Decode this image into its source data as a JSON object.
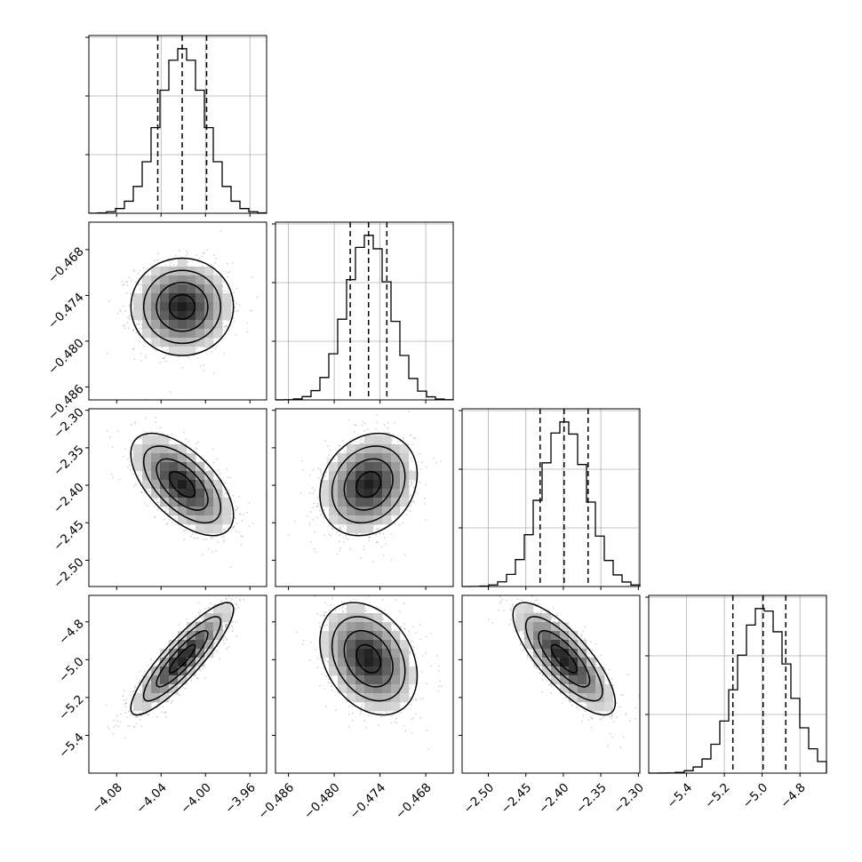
{
  "chart_data": {
    "type": "corner",
    "n_params": 4,
    "colors": {
      "line": "#000000",
      "grid": "#b0b0b0",
      "points": "#7f7f7f",
      "density_low": "#f2f2f2",
      "density_high": "#000000"
    },
    "grid": true,
    "params": [
      {
        "index": 0,
        "range": [
          -4.105,
          -3.945
        ],
        "ticks": [
          -4.08,
          -4.04,
          -4.0,
          -3.96
        ],
        "tick_labels": [
          "−4.08",
          "−4.04",
          "−4.00",
          "−3.96"
        ],
        "mean": -4.021,
        "std": 0.021,
        "quantiles": [
          -4.043,
          -4.021,
          -3.999
        ]
      },
      {
        "index": 1,
        "range": [
          -0.4877,
          -0.4644
        ],
        "ticks": [
          -0.486,
          -0.48,
          -0.474,
          -0.468
        ],
        "tick_labels": [
          "−0.486",
          "−0.480",
          "−0.474",
          "−0.468"
        ],
        "mean": -0.4755,
        "std": 0.0029,
        "quantiles": [
          -0.4779,
          -0.4755,
          -0.4731
        ]
      },
      {
        "index": 2,
        "range": [
          -2.535,
          -2.298
        ],
        "ticks": [
          -2.5,
          -2.45,
          -2.4,
          -2.35,
          -2.3
        ],
        "tick_labels": [
          "−2.50",
          "−2.45",
          "−2.40",
          "−2.35",
          "−2.30"
        ],
        "mean": -2.399,
        "std": 0.031,
        "quantiles": [
          -2.431,
          -2.399,
          -2.367
        ]
      },
      {
        "index": 3,
        "range": [
          -5.6,
          -4.66
        ],
        "ticks": [
          -5.4,
          -5.2,
          -5.0,
          -4.8
        ],
        "tick_labels": [
          "−5.4",
          "−5.2",
          "−5.0",
          "−4.8"
        ],
        "mean": -4.995,
        "std": 0.135,
        "quantiles": [
          -5.155,
          -4.995,
          -4.875
        ]
      }
    ],
    "correlations": [
      {
        "pair": [
          1,
          0
        ],
        "rho": 0.0
      },
      {
        "pair": [
          2,
          0
        ],
        "rho": -0.6
      },
      {
        "pair": [
          2,
          1
        ],
        "rho": 0.2
      },
      {
        "pair": [
          3,
          0
        ],
        "rho": 0.88
      },
      {
        "pair": [
          3,
          1
        ],
        "rho": -0.3
      },
      {
        "pair": [
          3,
          2
        ],
        "rho": -0.78
      }
    ],
    "histogram_bins": 20,
    "contour_levels_sigma": [
      0.5,
      1.0,
      1.5,
      2.0
    ]
  }
}
